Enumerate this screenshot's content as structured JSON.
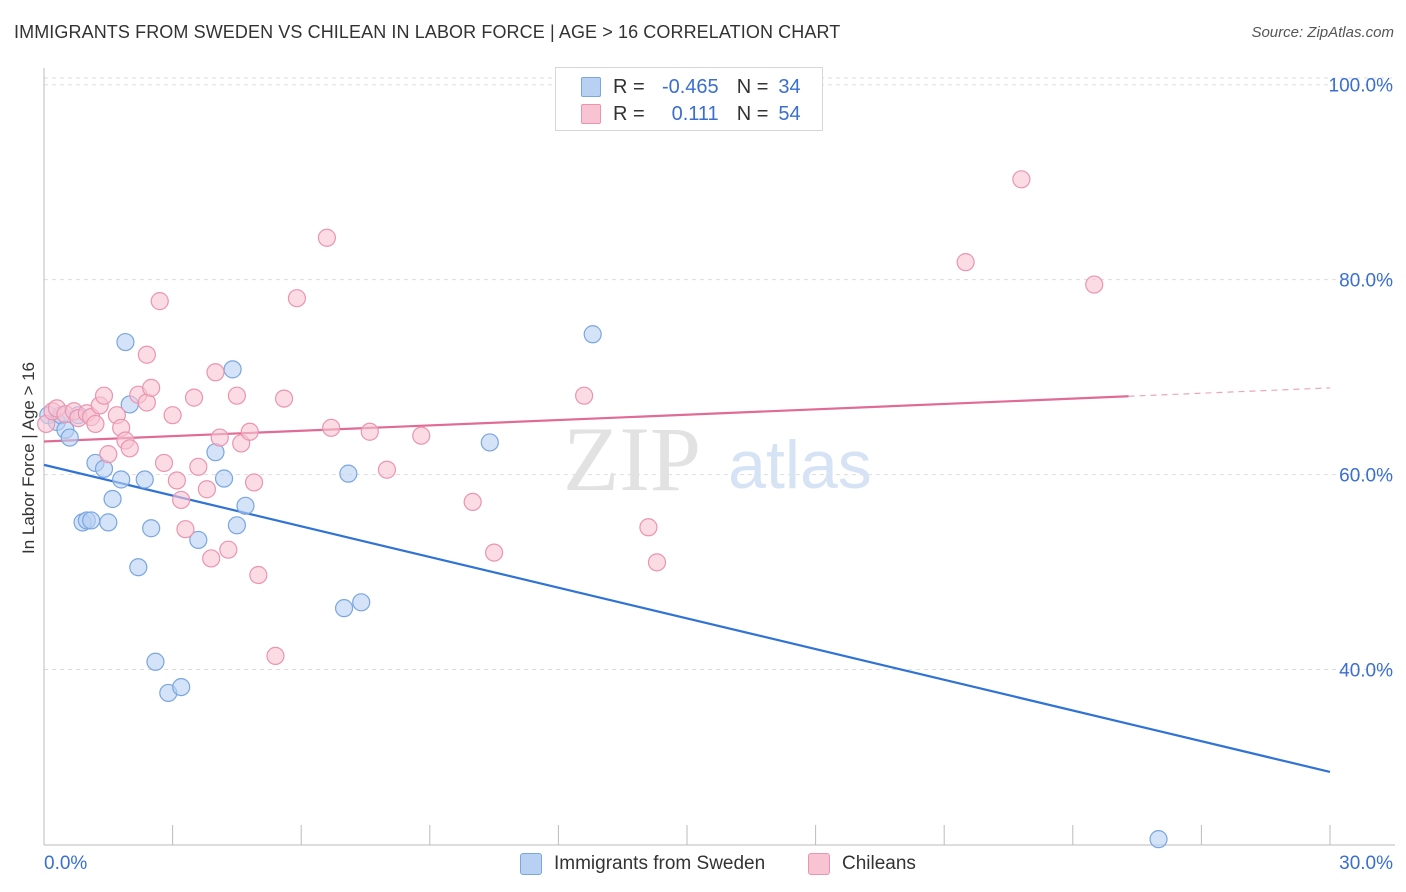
{
  "title": "IMMIGRANTS FROM SWEDEN VS CHILEAN IN LABOR FORCE | AGE > 16 CORRELATION CHART",
  "source": "Source: ZipAtlas.com",
  "watermark": {
    "zip": "ZIP",
    "atlas": "atlas"
  },
  "legend": {
    "r_label": "R =",
    "n_label": "N =",
    "rows": [
      {
        "r": "-0.465",
        "n": "34"
      },
      {
        "r": "0.111",
        "n": "54"
      }
    ]
  },
  "colors": {
    "blue_fill": "#b8d0f2",
    "blue_stroke": "#7aa6e0",
    "blue_line": "#3173d4",
    "pink_fill": "#f8c4d4",
    "pink_stroke": "#eb94b0",
    "pink_line": "#e06b94",
    "axis_text": "#3a6fd0",
    "grid": "#dddddd"
  },
  "chart_data": {
    "type": "scatter",
    "title": "IMMIGRANTS FROM SWEDEN VS CHILEAN IN LABOR FORCE | AGE > 16 CORRELATION CHART",
    "xlabel": "",
    "ylabel": "In Labor Force | Age > 16",
    "xlim": [
      0,
      30
    ],
    "ylim": [
      22,
      101
    ],
    "x_tick_labels": [
      "0.0%",
      "30.0%"
    ],
    "y_ticks": [
      {
        "value": 40,
        "label": "40.0%"
      },
      {
        "value": 60,
        "label": "60.0%"
      },
      {
        "value": 80,
        "label": "80.0%"
      },
      {
        "value": 100,
        "label": "100.0%"
      }
    ],
    "series": [
      {
        "name": "Immigrants from Sweden",
        "color": "blue",
        "points": [
          [
            0.1,
            66.1
          ],
          [
            0.3,
            65.4
          ],
          [
            0.4,
            66.1
          ],
          [
            0.5,
            64.6
          ],
          [
            0.6,
            63.8
          ],
          [
            0.8,
            66.1
          ],
          [
            0.9,
            55.1
          ],
          [
            1.0,
            55.3
          ],
          [
            1.1,
            55.3
          ],
          [
            1.2,
            61.2
          ],
          [
            1.4,
            60.6
          ],
          [
            1.5,
            55.1
          ],
          [
            1.6,
            57.5
          ],
          [
            1.8,
            59.5
          ],
          [
            1.9,
            73.6
          ],
          [
            2.0,
            67.2
          ],
          [
            2.2,
            50.5
          ],
          [
            2.35,
            59.5
          ],
          [
            2.5,
            54.5
          ],
          [
            2.6,
            40.8
          ],
          [
            2.9,
            37.6
          ],
          [
            3.2,
            38.2
          ],
          [
            3.6,
            53.3
          ],
          [
            4.0,
            62.3
          ],
          [
            4.2,
            59.6
          ],
          [
            4.4,
            70.8
          ],
          [
            4.5,
            54.8
          ],
          [
            4.7,
            56.8
          ],
          [
            7.0,
            46.3
          ],
          [
            7.1,
            60.1
          ],
          [
            7.4,
            46.9
          ],
          [
            10.4,
            63.3
          ],
          [
            12.8,
            74.4
          ],
          [
            26.0,
            22.6
          ]
        ]
      },
      {
        "name": "Chileans",
        "color": "pink",
        "points": [
          [
            0.05,
            65.2
          ],
          [
            0.2,
            66.5
          ],
          [
            0.3,
            66.8
          ],
          [
            0.5,
            66.2
          ],
          [
            0.7,
            66.5
          ],
          [
            0.8,
            65.8
          ],
          [
            1.0,
            66.3
          ],
          [
            1.1,
            65.9
          ],
          [
            1.2,
            65.2
          ],
          [
            1.3,
            67.1
          ],
          [
            1.4,
            68.1
          ],
          [
            1.5,
            62.1
          ],
          [
            1.7,
            66.1
          ],
          [
            1.8,
            64.8
          ],
          [
            1.9,
            63.5
          ],
          [
            2.0,
            62.7
          ],
          [
            2.2,
            68.2
          ],
          [
            2.4,
            67.4
          ],
          [
            2.4,
            72.3
          ],
          [
            2.5,
            68.9
          ],
          [
            2.7,
            77.8
          ],
          [
            2.8,
            61.2
          ],
          [
            3.0,
            66.1
          ],
          [
            3.1,
            59.4
          ],
          [
            3.2,
            57.4
          ],
          [
            3.3,
            54.4
          ],
          [
            3.5,
            67.9
          ],
          [
            3.6,
            60.8
          ],
          [
            3.8,
            58.5
          ],
          [
            3.9,
            51.4
          ],
          [
            4.0,
            70.5
          ],
          [
            4.1,
            63.8
          ],
          [
            4.3,
            52.3
          ],
          [
            4.5,
            68.1
          ],
          [
            4.6,
            63.2
          ],
          [
            4.8,
            64.4
          ],
          [
            4.9,
            59.2
          ],
          [
            5.0,
            49.7
          ],
          [
            5.4,
            41.4
          ],
          [
            5.6,
            67.8
          ],
          [
            5.9,
            78.1
          ],
          [
            6.6,
            84.3
          ],
          [
            6.7,
            64.8
          ],
          [
            7.6,
            64.4
          ],
          [
            8.0,
            60.5
          ],
          [
            8.8,
            64.0
          ],
          [
            10.0,
            57.2
          ],
          [
            10.5,
            52.0
          ],
          [
            12.6,
            68.1
          ],
          [
            14.1,
            54.6
          ],
          [
            14.3,
            51.0
          ],
          [
            21.5,
            81.8
          ],
          [
            24.5,
            79.5
          ],
          [
            22.8,
            90.3
          ]
        ]
      }
    ],
    "trend_lines": [
      {
        "series": "Immigrants from Sweden",
        "x1": 0,
        "y1": 61.0,
        "x2": 30,
        "y2": 29.5,
        "dashed_from": null
      },
      {
        "series": "Chileans",
        "x1": 0,
        "y1": 63.4,
        "x2": 30,
        "y2": 68.9,
        "dashed_from": 25.3
      }
    ]
  },
  "bottom_legend": [
    {
      "label": "Immigrants from Sweden"
    },
    {
      "label": "Chileans"
    }
  ]
}
